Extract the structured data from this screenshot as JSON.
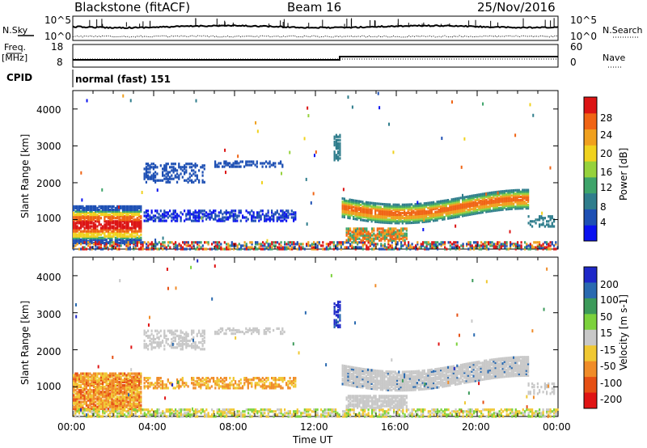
{
  "header": {
    "station": "Blackstone (fitACF)",
    "beam": "Beam 16",
    "date": "25/Nov/2016"
  },
  "side_labels": {
    "nsky": "N.Sky",
    "freq": "Freq.",
    "mhz": "[MHz]",
    "cpid": "CPID",
    "nsearch": "N.Search",
    "nave": "Nave"
  },
  "panel_ticks": {
    "noise_left": [
      "10^5",
      "10^0"
    ],
    "noise_right": [
      "10^5",
      "10^0"
    ],
    "freq_left": [
      "18",
      "8"
    ],
    "freq_right": [
      "60",
      "0"
    ]
  },
  "cpid_text": "normal (fast) 151",
  "chart_data": [
    {
      "type": "heatmap",
      "name": "power",
      "ylabel": "Slant Range [km]",
      "yticks": [
        "1000",
        "2000",
        "3000",
        "4000"
      ],
      "ylim": [
        200,
        4500
      ],
      "xlim": [
        0,
        24
      ],
      "colorbar_label": "Power [dB]",
      "colorbar_ticks": [
        "4",
        "8",
        "12",
        "16",
        "20",
        "24",
        "28"
      ],
      "colorbar_colors": [
        "#0a12f0",
        "#1e50b4",
        "#2f7d8c",
        "#3ea46a",
        "#96d23c",
        "#f0d21e",
        "#f0a01e",
        "#f06414",
        "#dc1414"
      ]
    },
    {
      "type": "heatmap",
      "name": "velocity",
      "ylabel": "Slant Range [km]",
      "yticks": [
        "1000",
        "2000",
        "3000",
        "4000"
      ],
      "ylim": [
        200,
        4500
      ],
      "xlim": [
        0,
        24
      ],
      "colorbar_label": "Velocity [m s-1]",
      "colorbar_ticks": [
        "200",
        "100",
        "50",
        "15",
        "-15",
        "-50",
        "-100",
        "-200"
      ],
      "colorbar_colors": [
        "#1e28c8",
        "#2a6ab0",
        "#3c9a5a",
        "#7cd23c",
        "#c8c8c8",
        "#f0c832",
        "#f08c28",
        "#e65014",
        "#e01414"
      ]
    }
  ],
  "x_axis": {
    "label": "Time UT",
    "ticks": [
      "00:00",
      "04:00",
      "08:00",
      "12:00",
      "16:00",
      "20:00",
      "00:00"
    ]
  }
}
